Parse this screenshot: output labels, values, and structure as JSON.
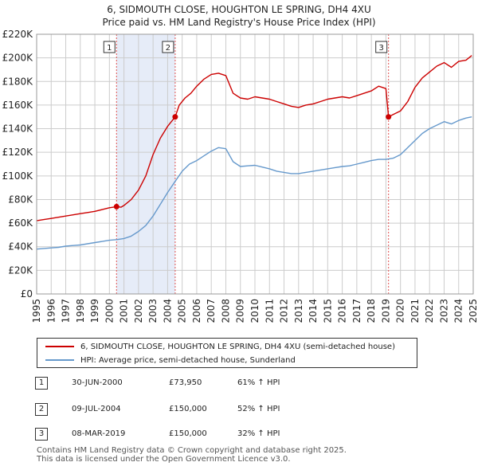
{
  "title_lines": [
    "6, SIDMOUTH CLOSE, HOUGHTON LE SPRING, DH4 4XU",
    "Price paid vs. HM Land Registry's House Price Index (HPI)"
  ],
  "colors": {
    "price_line": "#cc0000",
    "hpi_line": "#6699cc",
    "shade": "#e6ecf8",
    "vline": "#e05050",
    "grid": "#cccccc"
  },
  "chart_data": {
    "type": "line",
    "title": "6, SIDMOUTH CLOSE, HOUGHTON LE SPRING, DH4 4XU — Price paid vs. HM Land Registry's House Price Index (HPI)",
    "xlabel": "",
    "ylabel": "",
    "xlim": [
      1995,
      2025
    ],
    "ylim": [
      0,
      220000
    ],
    "grid": true,
    "x_ticks": [
      1995,
      1996,
      1997,
      1998,
      1999,
      2000,
      2001,
      2002,
      2003,
      2004,
      2005,
      2006,
      2007,
      2008,
      2009,
      2010,
      2011,
      2012,
      2013,
      2014,
      2015,
      2016,
      2017,
      2018,
      2019,
      2020,
      2021,
      2022,
      2023,
      2024,
      2025
    ],
    "y_ticks": [
      0,
      20000,
      40000,
      60000,
      80000,
      100000,
      120000,
      140000,
      160000,
      180000,
      200000,
      220000
    ],
    "y_tick_labels": [
      "£0",
      "£20K",
      "£40K",
      "£60K",
      "£80K",
      "£100K",
      "£120K",
      "£140K",
      "£160K",
      "£180K",
      "£200K",
      "£220K"
    ],
    "series": [
      {
        "name": "6, SIDMOUTH CLOSE, HOUGHTON LE SPRING, DH4 4XU (semi-detached house)",
        "color": "#cc0000",
        "x": [
          1995.0,
          1995.5,
          1996.0,
          1996.5,
          1997.0,
          1997.5,
          1998.0,
          1998.5,
          1999.0,
          1999.5,
          2000.0,
          2000.49,
          2000.8,
          2001.0,
          2001.5,
          2002.0,
          2002.5,
          2003.0,
          2003.5,
          2004.0,
          2004.52,
          2004.8,
          2005.2,
          2005.6,
          2006.0,
          2006.5,
          2007.0,
          2007.5,
          2008.0,
          2008.5,
          2009.0,
          2009.5,
          2010.0,
          2010.5,
          2011.0,
          2011.5,
          2012.0,
          2012.5,
          2013.0,
          2013.5,
          2014.0,
          2014.5,
          2015.0,
          2015.5,
          2016.0,
          2016.5,
          2017.0,
          2017.5,
          2018.0,
          2018.5,
          2019.0,
          2019.18,
          2019.5,
          2020.0,
          2020.5,
          2021.0,
          2021.5,
          2022.0,
          2022.5,
          2023.0,
          2023.5,
          2024.0,
          2024.5,
          2024.9
        ],
        "values": [
          62000,
          63000,
          64000,
          65000,
          66000,
          67000,
          68000,
          69000,
          70000,
          71500,
          73000,
          73950,
          73500,
          75000,
          80000,
          88000,
          100000,
          118000,
          132000,
          142000,
          150000,
          160000,
          166000,
          170000,
          176000,
          182000,
          186000,
          187000,
          185000,
          170000,
          166000,
          165000,
          167000,
          166000,
          165000,
          163000,
          161000,
          159000,
          158000,
          160000,
          161000,
          163000,
          165000,
          166000,
          167000,
          166000,
          168000,
          170000,
          172000,
          176000,
          174000,
          150000,
          152000,
          155000,
          163000,
          175000,
          183000,
          188000,
          193000,
          196000,
          192000,
          197000,
          198000,
          202000
        ]
      },
      {
        "name": "HPI: Average price, semi-detached house, Sunderland",
        "color": "#6699cc",
        "x": [
          1995.0,
          1995.5,
          1996.0,
          1996.5,
          1997.0,
          1997.5,
          1998.0,
          1998.5,
          1999.0,
          1999.5,
          2000.0,
          2000.5,
          2001.0,
          2001.5,
          2002.0,
          2002.5,
          2003.0,
          2003.5,
          2004.0,
          2004.5,
          2005.0,
          2005.5,
          2006.0,
          2006.5,
          2007.0,
          2007.5,
          2008.0,
          2008.5,
          2009.0,
          2009.5,
          2010.0,
          2010.5,
          2011.0,
          2011.5,
          2012.0,
          2012.5,
          2013.0,
          2013.5,
          2014.0,
          2014.5,
          2015.0,
          2015.5,
          2016.0,
          2016.5,
          2017.0,
          2017.5,
          2018.0,
          2018.5,
          2019.0,
          2019.5,
          2020.0,
          2020.5,
          2021.0,
          2021.5,
          2022.0,
          2022.5,
          2023.0,
          2023.5,
          2024.0,
          2024.5,
          2024.9
        ],
        "values": [
          38000,
          38500,
          39000,
          39500,
          40500,
          41000,
          41500,
          42500,
          43500,
          44500,
          45500,
          46000,
          47000,
          49000,
          53000,
          58000,
          66000,
          76000,
          86000,
          95000,
          104000,
          110000,
          113000,
          117000,
          121000,
          124000,
          123000,
          112000,
          108000,
          108500,
          109000,
          107500,
          106000,
          104000,
          103000,
          102000,
          102000,
          103000,
          104000,
          105000,
          106000,
          107000,
          108000,
          108500,
          110000,
          111500,
          113000,
          114000,
          114000,
          115000,
          118000,
          124000,
          130000,
          136000,
          140000,
          143000,
          146000,
          144000,
          147000,
          149000,
          150000
        ]
      }
    ],
    "sales": [
      {
        "n": "1",
        "year": 2000.49,
        "value": 73950
      },
      {
        "n": "2",
        "year": 2004.52,
        "value": 150000
      },
      {
        "n": "3",
        "year": 2019.18,
        "value": 150000
      }
    ],
    "shaded_ranges": [
      [
        2000.49,
        2004.52
      ]
    ]
  },
  "legend": {
    "items": [
      {
        "label": "6, SIDMOUTH CLOSE, HOUGHTON LE SPRING, DH4 4XU (semi-detached house)",
        "color": "#cc0000"
      },
      {
        "label": "HPI: Average price, semi-detached house, Sunderland",
        "color": "#6699cc"
      }
    ]
  },
  "sales_table": [
    {
      "num": "1",
      "date": "30-JUN-2000",
      "price": "£73,950",
      "hpi": "61% ↑ HPI"
    },
    {
      "num": "2",
      "date": "09-JUL-2004",
      "price": "£150,000",
      "hpi": "52% ↑ HPI"
    },
    {
      "num": "3",
      "date": "08-MAR-2019",
      "price": "£150,000",
      "hpi": "32% ↑ HPI"
    }
  ],
  "footer": [
    "Contains HM Land Registry data © Crown copyright and database right 2025.",
    "This data is licensed under the Open Government Licence v3.0."
  ]
}
